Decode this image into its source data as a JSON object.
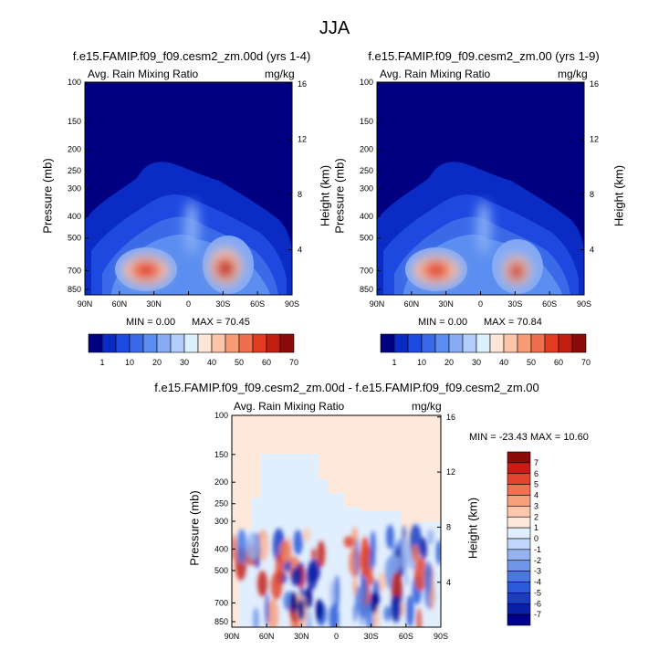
{
  "figure_title": "JJA",
  "colors": {
    "background": "#00008b",
    "abs_scale": [
      "#000080",
      "#0a2bc4",
      "#1e49e0",
      "#3a6ae8",
      "#5b8ef0",
      "#86acf5",
      "#b3cdfa",
      "#ddeefd",
      "#fde6d6",
      "#fdc4aa",
      "#f89c78",
      "#f16e4c",
      "#e23c24",
      "#c31d12",
      "#8b0a0a"
    ],
    "diff_scale": [
      "#00008b",
      "#0a1fa8",
      "#1a3cc6",
      "#2a5ad8",
      "#4a78e0",
      "#6f95e8",
      "#96b3f0",
      "#c0d6fa",
      "#e1eefd",
      "#fde8d9",
      "#fcc7ad",
      "#f8a07c",
      "#ef7352",
      "#e3452d",
      "#c41f15",
      "#8b0a0a"
    ]
  },
  "chart_data": [
    {
      "type": "heatmap",
      "title": "f.e15.FAMIP.f09_f09.cesm2_zm.00d (yrs 1-4)",
      "left_string": "Avg. Rain Mixing Ratio",
      "right_string": "mg/kg",
      "xlabel": "",
      "ylabel": "Pressure (mb)",
      "y2label": "Height (km)",
      "x_ticks": [
        "90N",
        "60N",
        "30N",
        "0",
        "30S",
        "60S",
        "90S"
      ],
      "y_ticks": [
        "100",
        "150",
        "200",
        "250",
        "300",
        "400",
        "500",
        "700",
        "850"
      ],
      "y2_ticks": [
        "16",
        "12",
        "8",
        "4"
      ],
      "min_label": "MIN =   0.00",
      "max_label": "MAX =  70.45",
      "colorbar_labels": [
        "1",
        "10",
        "20",
        "30",
        "40",
        "50",
        "60",
        "70"
      ],
      "features": [
        {
          "lat": 35,
          "p": 700,
          "value": 70,
          "note": "NH subtropical maximum"
        },
        {
          "lat": -25,
          "p": 700,
          "value": 70,
          "note": "SH subtropical maximum"
        },
        {
          "lat": 10,
          "p": 400,
          "value": 30,
          "note": "ITCZ upper extension"
        }
      ]
    },
    {
      "type": "heatmap",
      "title": "f.e15.FAMIP.f09_f09.cesm2_zm.00 (yrs 1-9)",
      "left_string": "Avg. Rain Mixing Ratio",
      "right_string": "mg/kg",
      "xlabel": "",
      "ylabel": "Pressure (mb)",
      "y2label": "Height (km)",
      "x_ticks": [
        "90N",
        "60N",
        "30N",
        "0",
        "30S",
        "60S",
        "90S"
      ],
      "y_ticks": [
        "100",
        "150",
        "200",
        "250",
        "300",
        "400",
        "500",
        "700",
        "850"
      ],
      "y2_ticks": [
        "16",
        "12",
        "8",
        "4"
      ],
      "min_label": "MIN =   0.00",
      "max_label": "MAX =  70.84",
      "colorbar_labels": [
        "1",
        "10",
        "20",
        "30",
        "40",
        "50",
        "60",
        "70"
      ],
      "features": [
        {
          "lat": 40,
          "p": 700,
          "value": 70,
          "note": "NH subtropical maximum"
        },
        {
          "lat": -25,
          "p": 700,
          "value": 70,
          "note": "SH subtropical maximum"
        },
        {
          "lat": 10,
          "p": 400,
          "value": 30,
          "note": "ITCZ upper extension"
        }
      ]
    },
    {
      "type": "heatmap",
      "title": "f.e15.FAMIP.f09_f09.cesm2_zm.00d - f.e15.FAMIP.f09_f09.cesm2_zm.00",
      "left_string": "Avg. Rain Mixing Ratio",
      "right_string": "mg/kg",
      "xlabel": "",
      "ylabel": "Pressure (mb)",
      "y2label": "Height (km)",
      "x_ticks": [
        "90N",
        "60N",
        "30N",
        "0",
        "30S",
        "60S",
        "90S"
      ],
      "y_ticks": [
        "100",
        "150",
        "200",
        "250",
        "300",
        "400",
        "500",
        "700",
        "850"
      ],
      "y2_ticks": [
        "16",
        "12",
        "8",
        "4"
      ],
      "stats_label": "MIN = -23.43   MAX =  10.60",
      "colorbar_labels": [
        "7",
        "6",
        "5",
        "4",
        "3",
        "2",
        "1",
        "0",
        "-1",
        "-2",
        "-3",
        "-4",
        "-5",
        "-6",
        "-7"
      ],
      "features": [
        {
          "lat": 30,
          "p": 700,
          "value": -7,
          "note": "negative difference"
        },
        {
          "lat": -25,
          "p": 500,
          "value": 5,
          "note": "positive difference"
        }
      ]
    }
  ]
}
